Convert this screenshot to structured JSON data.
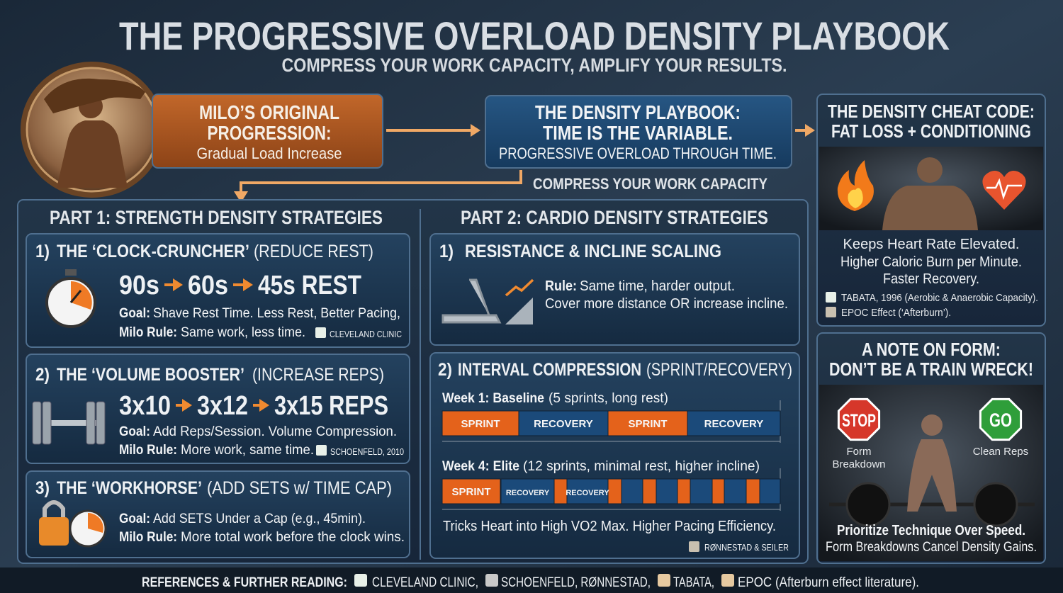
{
  "header": {
    "title": "THE PROGRESSIVE OVERLOAD DENSITY PLAYBOOK",
    "subtitle": "COMPRESS YOUR WORK CAPACITY, AMPLIFY YOUR RESULTS."
  },
  "flow": {
    "original": {
      "title": [
        "MILO’S ORIGINAL",
        "PROGRESSION:"
      ],
      "subtitle": "Gradual Load Increase"
    },
    "playbook": {
      "title": [
        "THE DENSITY PLAYBOOK:",
        "TIME IS THE VARIABLE."
      ],
      "subtitle": "PROGRESSIVE OVERLOAD THROUGH TIME."
    },
    "connector": "COMPRESS YOUR WORK CAPACITY"
  },
  "cheat_code": {
    "title": [
      "THE DENSITY CHEAT CODE:",
      "FAT LOSS + CONDITIONING"
    ],
    "benefits": [
      "Keeps Heart Rate Elevated.",
      "Higher Caloric Burn per Minute.",
      "Faster Recovery."
    ],
    "references": [
      "TABATA, 1996 (Aerobic & Anaerobic Capacity).",
      "EPOC Effect (‘Afterburn’)."
    ]
  },
  "part1": {
    "title": "PART 1: STRENGTH DENSITY STRATEGIES",
    "strategies": [
      {
        "number": "1)",
        "name": "THE ‘CLOCK-CRUNCHER’",
        "note": "(REDUCE REST)",
        "progression": [
          "90s",
          "60s",
          "45s REST"
        ],
        "goal_label": "Goal:",
        "goal": "Shave Rest Time. Less Rest, Better Pacing,",
        "rule_label": "Milo Rule:",
        "rule": "Same work, less time.",
        "source": "CLEVELAND CLINIC"
      },
      {
        "number": "2)",
        "name": "THE ‘VOLUME BOOSTER’",
        "note": "(INCREASE REPS)",
        "progression": [
          "3x10",
          "3x12",
          "3x15 REPS"
        ],
        "goal_label": "Goal:",
        "goal": "Add Reps/Session. Volume Compression.",
        "rule_label": "Milo Rule:",
        "rule": "More work, same time.",
        "source": "SCHOENFELD, 2010"
      },
      {
        "number": "3)",
        "name": "THE ‘WORKHORSE’",
        "note": "(ADD SETS w/ TIME CAP)",
        "goal_label": "Goal:",
        "goal": "Add SETS Under a Cap (e.g., 45min).",
        "rule_label": "Milo Rule:",
        "rule": "More total work before the clock wins."
      }
    ]
  },
  "part2": {
    "title": "PART 2: CARDIO DENSITY STRATEGIES",
    "strategies": [
      {
        "number": "1)",
        "name": "RESISTANCE & INCLINE SCALING",
        "rule_label": "Rule:",
        "rule": [
          "Same time, harder output.",
          "Cover more distance OR increase incline."
        ]
      },
      {
        "number": "2)",
        "name": "INTERVAL COMPRESSION",
        "note": "(SPRINT/RECOVERY)",
        "weeks": [
          {
            "label": "Week 1: Baseline",
            "detail": "(5 sprints, long rest)",
            "segments": [
              "SPRINT",
              "RECOVERY",
              "SPRINT",
              "RECOVERY"
            ]
          },
          {
            "label": "Week 4: Elite",
            "detail": "(12 sprints, minimal rest, higher incline)",
            "segments": [
              "SPRINT",
              "RECOVERY",
              "RECOVERY"
            ]
          }
        ],
        "summary": "Tricks Heart into High VO2 Max. Higher Pacing Efficiency.",
        "source": "RØNNESTAD & SEILER"
      }
    ]
  },
  "form_note": {
    "title": [
      "A NOTE ON FORM:",
      "DON’T BE A TRAIN WRECK!"
    ],
    "stop": {
      "sign": "STOP",
      "caption": [
        "Form",
        "Breakdown"
      ]
    },
    "go": {
      "sign": "GO",
      "caption": [
        "Clean Reps"
      ]
    },
    "message": [
      "Prioritize Technique Over Speed.",
      "Form Breakdowns Cancel Density Gains."
    ]
  },
  "references": {
    "label": "REFERENCES & FURTHER READING:",
    "items": [
      "CLEVELAND CLINIC,",
      "SCHOENFELD, RØNNESTAD,",
      "TABATA,",
      "EPOC (Afterburn effect literature)."
    ]
  }
}
